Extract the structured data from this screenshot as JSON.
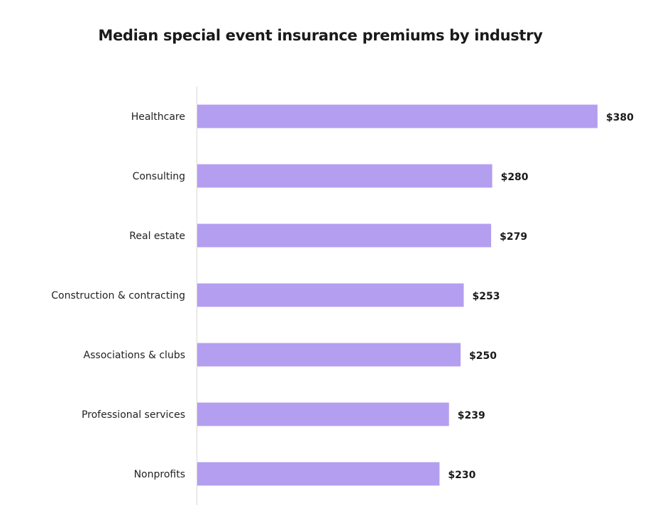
{
  "chart_data": {
    "type": "bar",
    "orientation": "horizontal",
    "title": "Median special event insurance premiums by industry",
    "categories": [
      "Healthcare",
      "Consulting",
      "Real estate",
      "Construction & contracting",
      "Associations & clubs",
      "Professional services",
      "Nonprofits"
    ],
    "values": [
      380,
      280,
      279,
      253,
      250,
      239,
      230
    ],
    "data_labels": [
      "$380",
      "$280",
      "$279",
      "$253",
      "$250",
      "$239",
      "$230"
    ],
    "xlim": [
      0,
      380
    ],
    "grid": false,
    "bar_color": "#b49ef0"
  }
}
